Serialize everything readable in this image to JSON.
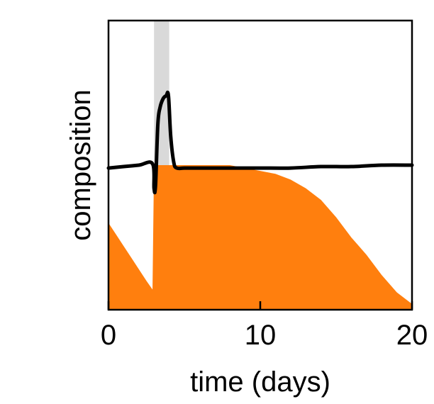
{
  "chart_data": {
    "type": "area",
    "xlabel": "time (days)",
    "ylabel": "composition",
    "xlim": [
      0,
      20
    ],
    "x_ticks": [
      0,
      10,
      20
    ],
    "x_tick_labels": [
      "0",
      "10",
      "20"
    ],
    "ylim": [
      0,
      1
    ],
    "y_ticks_shown": false,
    "grid": false,
    "legend": "none",
    "shaded_interval": {
      "x": [
        3.0,
        4.0
      ],
      "color": "#d9d9d9"
    },
    "series": [
      {
        "kind": "area",
        "color": "#ff7f0e",
        "x": [
          0,
          0.5,
          1,
          1.5,
          2,
          2.5,
          2.9,
          3.0,
          3.2,
          3.5,
          4,
          5,
          6,
          7,
          8,
          9,
          10,
          11,
          12,
          13,
          14,
          15,
          16,
          17,
          18,
          19,
          20
        ],
        "y": [
          0.3,
          0.26,
          0.22,
          0.18,
          0.14,
          0.1,
          0.07,
          0.5,
          0.5,
          0.5,
          0.5,
          0.5,
          0.5,
          0.5,
          0.5,
          0.49,
          0.48,
          0.47,
          0.45,
          0.42,
          0.38,
          0.32,
          0.25,
          0.19,
          0.12,
          0.06,
          0.02
        ]
      },
      {
        "kind": "line",
        "color": "#000000",
        "x": [
          0,
          1,
          2,
          2.9,
          3.0,
          3.1,
          3.25,
          3.4,
          3.6,
          3.8,
          3.95,
          4.1,
          4.3,
          4.5,
          5,
          6,
          8,
          10,
          12,
          14,
          16,
          18,
          20
        ],
        "y": [
          0.49,
          0.495,
          0.5,
          0.505,
          0.42,
          0.43,
          0.64,
          0.7,
          0.73,
          0.74,
          0.74,
          0.6,
          0.51,
          0.49,
          0.49,
          0.49,
          0.49,
          0.49,
          0.49,
          0.495,
          0.495,
          0.5,
          0.5
        ]
      }
    ]
  }
}
